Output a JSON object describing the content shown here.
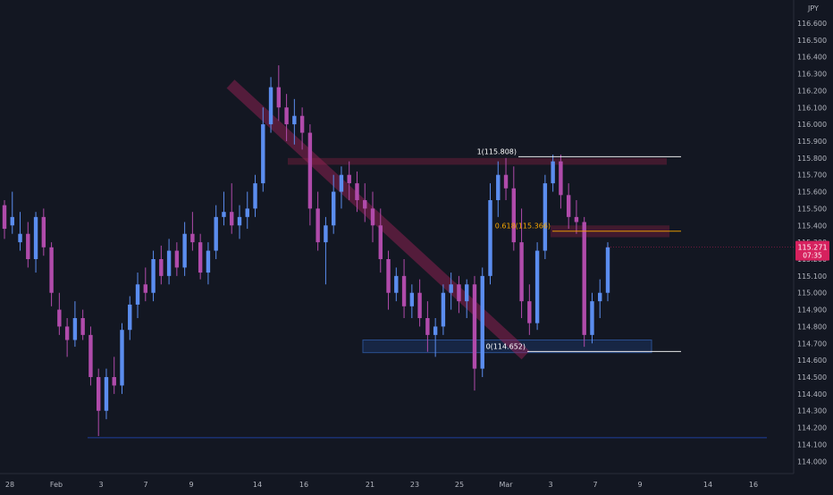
{
  "chart_data": {
    "type": "candlestick",
    "currency": "JPY",
    "y_ticks": [
      114.0,
      114.1,
      114.2,
      114.3,
      114.4,
      114.5,
      114.6,
      114.7,
      114.8,
      114.9,
      115.0,
      115.1,
      115.2,
      115.3,
      115.4,
      115.5,
      115.6,
      115.7,
      115.8,
      115.9,
      116.0,
      116.1,
      116.2,
      116.3,
      116.4,
      116.5,
      116.6
    ],
    "y_tick_labels": [
      "114.000",
      "114.100",
      "114.200",
      "114.300",
      "114.400",
      "114.500",
      "114.600",
      "114.700",
      "114.800",
      "114.900",
      "115.000",
      "115.100",
      "115.200",
      "115.300",
      "115.400",
      "115.500",
      "115.600",
      "115.700",
      "115.800",
      "115.900",
      "116.000",
      "116.100",
      "116.200",
      "116.300",
      "116.400",
      "116.500",
      "116.600"
    ],
    "ylim": [
      113.96,
      116.64
    ],
    "x_labels": [
      "28",
      "Feb",
      "3",
      "7",
      "9",
      "14",
      "16",
      "21",
      "23",
      "25",
      "Mar",
      "3",
      "7",
      "9",
      "14",
      "16"
    ],
    "price_label": "115.271",
    "price_value": 115.271,
    "countdown": "07:35",
    "fib_levels": [
      {
        "label": "1(115.808)",
        "value": 115.808,
        "color": "#ffffff"
      },
      {
        "label": "0.618(115.366)",
        "value": 115.366,
        "color": "#f7a600"
      },
      {
        "label": "0(114.652)",
        "value": 114.652,
        "color": "#ffffff"
      }
    ],
    "support_line": 114.14,
    "demand_zone": [
      114.645,
      114.72
    ],
    "supply_zones": [
      [
        115.76,
        115.8
      ],
      [
        115.33,
        115.4
      ]
    ],
    "trendline": {
      "from": 116.24,
      "to": 114.63
    },
    "ohlc": [
      [
        115.52,
        115.55,
        115.32,
        115.38
      ],
      [
        115.4,
        115.6,
        115.35,
        115.45
      ],
      [
        115.3,
        115.48,
        115.25,
        115.35
      ],
      [
        115.35,
        115.42,
        115.15,
        115.2
      ],
      [
        115.2,
        115.48,
        115.12,
        115.45
      ],
      [
        115.45,
        115.5,
        115.22,
        115.27
      ],
      [
        115.27,
        115.3,
        114.92,
        115.0
      ],
      [
        114.9,
        115.0,
        114.75,
        114.8
      ],
      [
        114.8,
        114.85,
        114.62,
        114.72
      ],
      [
        114.72,
        114.95,
        114.68,
        114.85
      ],
      [
        114.85,
        114.9,
        114.72,
        114.75
      ],
      [
        114.75,
        114.8,
        114.45,
        114.5
      ],
      [
        114.5,
        114.55,
        114.15,
        114.3
      ],
      [
        114.3,
        114.55,
        114.25,
        114.5
      ],
      [
        114.5,
        114.62,
        114.4,
        114.45
      ],
      [
        114.45,
        114.82,
        114.4,
        114.78
      ],
      [
        114.78,
        114.98,
        114.72,
        114.93
      ],
      [
        114.93,
        115.12,
        114.85,
        115.05
      ],
      [
        115.05,
        115.15,
        114.95,
        115.0
      ],
      [
        115.0,
        115.25,
        114.95,
        115.2
      ],
      [
        115.2,
        115.28,
        115.05,
        115.1
      ],
      [
        115.1,
        115.32,
        115.05,
        115.25
      ],
      [
        115.25,
        115.3,
        115.1,
        115.15
      ],
      [
        115.15,
        115.42,
        115.1,
        115.35
      ],
      [
        115.35,
        115.48,
        115.25,
        115.3
      ],
      [
        115.3,
        115.35,
        115.08,
        115.12
      ],
      [
        115.12,
        115.3,
        115.05,
        115.25
      ],
      [
        115.25,
        115.52,
        115.2,
        115.45
      ],
      [
        115.45,
        115.6,
        115.4,
        115.48
      ],
      [
        115.48,
        115.65,
        115.35,
        115.4
      ],
      [
        115.4,
        115.52,
        115.32,
        115.45
      ],
      [
        115.45,
        115.6,
        115.38,
        115.5
      ],
      [
        115.5,
        115.7,
        115.45,
        115.65
      ],
      [
        115.65,
        116.1,
        115.6,
        116.0
      ],
      [
        116.0,
        116.28,
        115.95,
        116.22
      ],
      [
        116.22,
        116.35,
        116.02,
        116.1
      ],
      [
        116.1,
        116.18,
        115.9,
        116.0
      ],
      [
        116.0,
        116.15,
        115.88,
        116.05
      ],
      [
        116.05,
        116.1,
        115.85,
        115.95
      ],
      [
        115.95,
        116.0,
        115.4,
        115.5
      ],
      [
        115.5,
        115.6,
        115.25,
        115.3
      ],
      [
        115.3,
        115.45,
        115.05,
        115.4
      ],
      [
        115.4,
        115.7,
        115.35,
        115.6
      ],
      [
        115.6,
        115.75,
        115.5,
        115.7
      ],
      [
        115.7,
        115.78,
        115.55,
        115.65
      ],
      [
        115.65,
        115.72,
        115.48,
        115.55
      ],
      [
        115.55,
        115.65,
        115.42,
        115.5
      ],
      [
        115.5,
        115.6,
        115.3,
        115.4
      ],
      [
        115.4,
        115.5,
        115.12,
        115.2
      ],
      [
        115.2,
        115.25,
        114.9,
        115.0
      ],
      [
        115.0,
        115.15,
        114.95,
        115.1
      ],
      [
        115.1,
        115.2,
        114.85,
        114.92
      ],
      [
        114.92,
        115.05,
        114.85,
        115.0
      ],
      [
        115.0,
        115.08,
        114.8,
        114.85
      ],
      [
        114.85,
        114.95,
        114.65,
        114.75
      ],
      [
        114.75,
        114.85,
        114.62,
        114.8
      ],
      [
        114.8,
        115.05,
        114.75,
        115.0
      ],
      [
        115.0,
        115.12,
        114.9,
        115.05
      ],
      [
        115.05,
        115.1,
        114.88,
        114.95
      ],
      [
        114.95,
        115.08,
        114.85,
        115.05
      ],
      [
        115.05,
        115.1,
        114.42,
        114.55
      ],
      [
        114.55,
        115.15,
        114.5,
        115.1
      ],
      [
        115.1,
        115.65,
        115.05,
        115.55
      ],
      [
        115.55,
        115.78,
        115.45,
        115.7
      ],
      [
        115.7,
        115.8,
        115.55,
        115.62
      ],
      [
        115.62,
        115.75,
        115.25,
        115.3
      ],
      [
        115.3,
        115.5,
        114.85,
        114.95
      ],
      [
        114.95,
        115.05,
        114.75,
        114.82
      ],
      [
        114.82,
        115.3,
        114.78,
        115.25
      ],
      [
        115.25,
        115.7,
        115.2,
        115.65
      ],
      [
        115.65,
        115.82,
        115.6,
        115.78
      ],
      [
        115.78,
        115.82,
        115.5,
        115.58
      ],
      [
        115.58,
        115.65,
        115.38,
        115.45
      ],
      [
        115.45,
        115.55,
        115.35,
        115.42
      ],
      [
        115.42,
        115.45,
        114.68,
        114.75
      ],
      [
        114.75,
        115.0,
        114.7,
        114.95
      ],
      [
        114.95,
        115.08,
        114.85,
        115.0
      ],
      [
        115.0,
        115.3,
        114.95,
        115.27
      ]
    ]
  }
}
